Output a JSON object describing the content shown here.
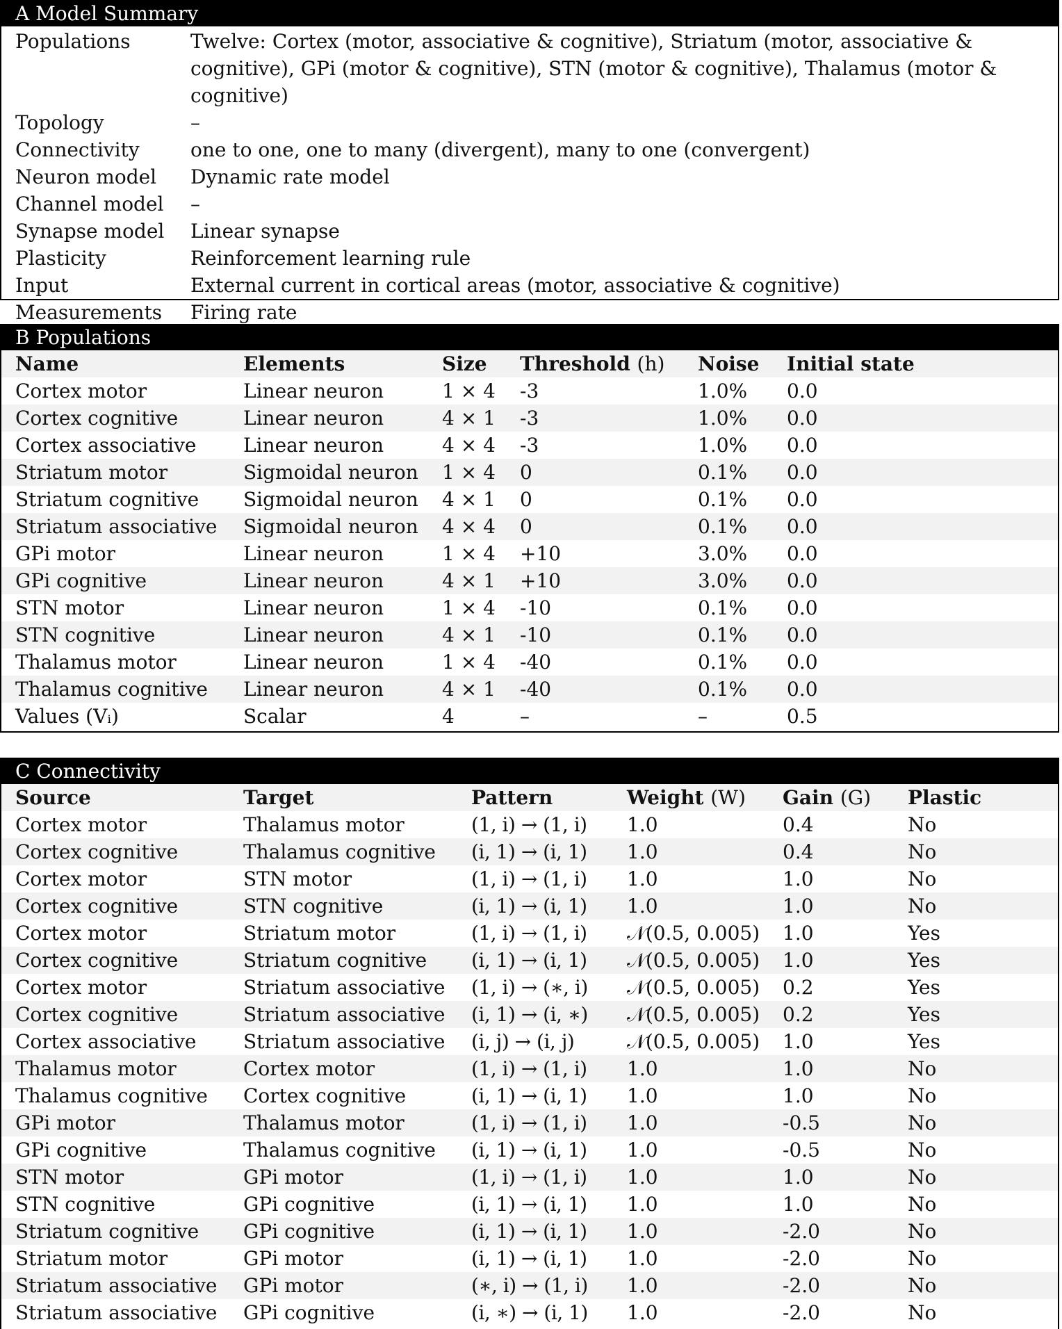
{
  "summary": {
    "title": "A Model Summary",
    "rows": [
      {
        "label": "Populations",
        "value": "Twelve: Cortex (motor, associative & cognitive), Striatum (motor, associative & cognitive), GPi (motor & cognitive), STN (motor & cognitive), Thalamus (motor & cognitive)"
      },
      {
        "label": "Topology",
        "value": "–"
      },
      {
        "label": "Connectivity",
        "value": "one to one, one to many (divergent), many to one (convergent)"
      },
      {
        "label": "Neuron model",
        "value": "Dynamic rate model"
      },
      {
        "label": "Channel model",
        "value": "–"
      },
      {
        "label": "Synapse model",
        "value": "Linear synapse"
      },
      {
        "label": "Plasticity",
        "value": "Reinforcement learning rule"
      },
      {
        "label": "Input",
        "value": "External current in cortical areas (motor, associative & cognitive)"
      },
      {
        "label": "Measurements",
        "value": "Firing rate"
      }
    ]
  },
  "populations": {
    "title": "B Populations",
    "headers": {
      "name": "Name",
      "elements": "Elements",
      "size": "Size",
      "threshold": "Threshold",
      "threshold_symbol": "(h)",
      "noise": "Noise",
      "initial": "Initial state"
    },
    "rows": [
      {
        "name": "Cortex motor",
        "elements": "Linear neuron",
        "size": "1 × 4",
        "threshold": "-3",
        "noise": "1.0%",
        "initial": "0.0"
      },
      {
        "name": "Cortex cognitive",
        "elements": "Linear neuron",
        "size": "4 × 1",
        "threshold": "-3",
        "noise": "1.0%",
        "initial": "0.0"
      },
      {
        "name": "Cortex associative",
        "elements": "Linear neuron",
        "size": "4 × 4",
        "threshold": "-3",
        "noise": "1.0%",
        "initial": "0.0"
      },
      {
        "name": "Striatum motor",
        "elements": "Sigmoidal neuron",
        "size": "1 × 4",
        "threshold": "0",
        "noise": "0.1%",
        "initial": "0.0"
      },
      {
        "name": "Striatum cognitive",
        "elements": "Sigmoidal neuron",
        "size": "4 × 1",
        "threshold": "0",
        "noise": "0.1%",
        "initial": "0.0"
      },
      {
        "name": "Striatum associative",
        "elements": "Sigmoidal neuron",
        "size": "4 × 4",
        "threshold": "0",
        "noise": "0.1%",
        "initial": "0.0"
      },
      {
        "name": "GPi motor",
        "elements": "Linear neuron",
        "size": "1 × 4",
        "threshold": "+10",
        "noise": "3.0%",
        "initial": "0.0"
      },
      {
        "name": "GPi cognitive",
        "elements": "Linear neuron",
        "size": "4 × 1",
        "threshold": "+10",
        "noise": "3.0%",
        "initial": "0.0"
      },
      {
        "name": "STN motor",
        "elements": "Linear neuron",
        "size": "1 × 4",
        "threshold": "-10",
        "noise": "0.1%",
        "initial": "0.0"
      },
      {
        "name": "STN cognitive",
        "elements": "Linear neuron",
        "size": "4 × 1",
        "threshold": "-10",
        "noise": "0.1%",
        "initial": "0.0"
      },
      {
        "name": "Thalamus motor",
        "elements": "Linear neuron",
        "size": "1 × 4",
        "threshold": "-40",
        "noise": "0.1%",
        "initial": "0.0"
      },
      {
        "name": "Thalamus cognitive",
        "elements": "Linear neuron",
        "size": "4 × 1",
        "threshold": "-40",
        "noise": "0.1%",
        "initial": "0.0"
      },
      {
        "name": "Values (Vᵢ)",
        "elements": "Scalar",
        "size": "4",
        "threshold": "–",
        "noise": "–",
        "initial": "0.5"
      }
    ]
  },
  "connectivity": {
    "title": "C Connectivity",
    "headers": {
      "source": "Source",
      "target": "Target",
      "pattern": "Pattern",
      "weight": "Weight",
      "weight_symbol": "(W)",
      "gain": "Gain",
      "gain_symbol": "(G)",
      "plastic": "Plastic"
    },
    "rows": [
      {
        "source": "Cortex motor",
        "target": "Thalamus motor",
        "pattern": "(1, i) → (1, i)",
        "weight": "1.0",
        "gain": "0.4",
        "plastic": "No"
      },
      {
        "source": "Cortex cognitive",
        "target": "Thalamus cognitive",
        "pattern": "(i, 1) → (i, 1)",
        "weight": "1.0",
        "gain": "0.4",
        "plastic": "No"
      },
      {
        "source": "Cortex motor",
        "target": "STN motor",
        "pattern": "(1, i) → (1, i)",
        "weight": "1.0",
        "gain": "1.0",
        "plastic": "No"
      },
      {
        "source": "Cortex cognitive",
        "target": "STN cognitive",
        "pattern": "(i, 1) → (i, 1)",
        "weight": "1.0",
        "gain": "1.0",
        "plastic": "No"
      },
      {
        "source": "Cortex motor",
        "target": "Striatum motor",
        "pattern": "(1, i) → (1, i)",
        "weight": "𝒩(0.5, 0.005)",
        "gain": "1.0",
        "plastic": "Yes"
      },
      {
        "source": "Cortex cognitive",
        "target": "Striatum cognitive",
        "pattern": "(i, 1) → (i, 1)",
        "weight": "𝒩(0.5, 0.005)",
        "gain": "1.0",
        "plastic": "Yes"
      },
      {
        "source": "Cortex motor",
        "target": "Striatum associative",
        "pattern": "(1, i) → (∗, i)",
        "weight": "𝒩(0.5, 0.005)",
        "gain": "0.2",
        "plastic": "Yes"
      },
      {
        "source": "Cortex cognitive",
        "target": "Striatum associative",
        "pattern": "(i, 1) → (i, ∗)",
        "weight": "𝒩(0.5, 0.005)",
        "gain": "0.2",
        "plastic": "Yes"
      },
      {
        "source": "Cortex associative",
        "target": "Striatum associative",
        "pattern": "(i, j) → (i, j)",
        "weight": "𝒩(0.5, 0.005)",
        "gain": "1.0",
        "plastic": "Yes"
      },
      {
        "source": "Thalamus motor",
        "target": "Cortex motor",
        "pattern": "(1, i) → (1, i)",
        "weight": "1.0",
        "gain": "1.0",
        "plastic": "No"
      },
      {
        "source": "Thalamus cognitive",
        "target": "Cortex cognitive",
        "pattern": "(i, 1) → (i, 1)",
        "weight": "1.0",
        "gain": "1.0",
        "plastic": "No"
      },
      {
        "source": "GPi motor",
        "target": "Thalamus motor",
        "pattern": "(1, i) → (1, i)",
        "weight": "1.0",
        "gain": "-0.5",
        "plastic": "No"
      },
      {
        "source": "GPi cognitive",
        "target": "Thalamus cognitive",
        "pattern": "(i, 1) → (i, 1)",
        "weight": "1.0",
        "gain": "-0.5",
        "plastic": "No"
      },
      {
        "source": "STN motor",
        "target": "GPi motor",
        "pattern": "(1, i) → (1, i)",
        "weight": "1.0",
        "gain": "1.0",
        "plastic": "No"
      },
      {
        "source": "STN cognitive",
        "target": "GPi cognitive",
        "pattern": "(i, 1) → (i, 1)",
        "weight": "1.0",
        "gain": "1.0",
        "plastic": "No"
      },
      {
        "source": "Striatum cognitive",
        "target": "GPi cognitive",
        "pattern": "(i, 1) → (i, 1)",
        "weight": "1.0",
        "gain": "-2.0",
        "plastic": "No"
      },
      {
        "source": "Striatum motor",
        "target": "GPi motor",
        "pattern": "(i, 1) → (i, 1)",
        "weight": "1.0",
        "gain": "-2.0",
        "plastic": "No"
      },
      {
        "source": "Striatum associative",
        "target": "GPi motor",
        "pattern": "(∗, i) → (1, i)",
        "weight": "1.0",
        "gain": "-2.0",
        "plastic": "No"
      },
      {
        "source": "Striatum associative",
        "target": "GPi cognitive",
        "pattern": "(i, ∗) → (i, 1)",
        "weight": "1.0",
        "gain": "-2.0",
        "plastic": "No"
      }
    ]
  }
}
